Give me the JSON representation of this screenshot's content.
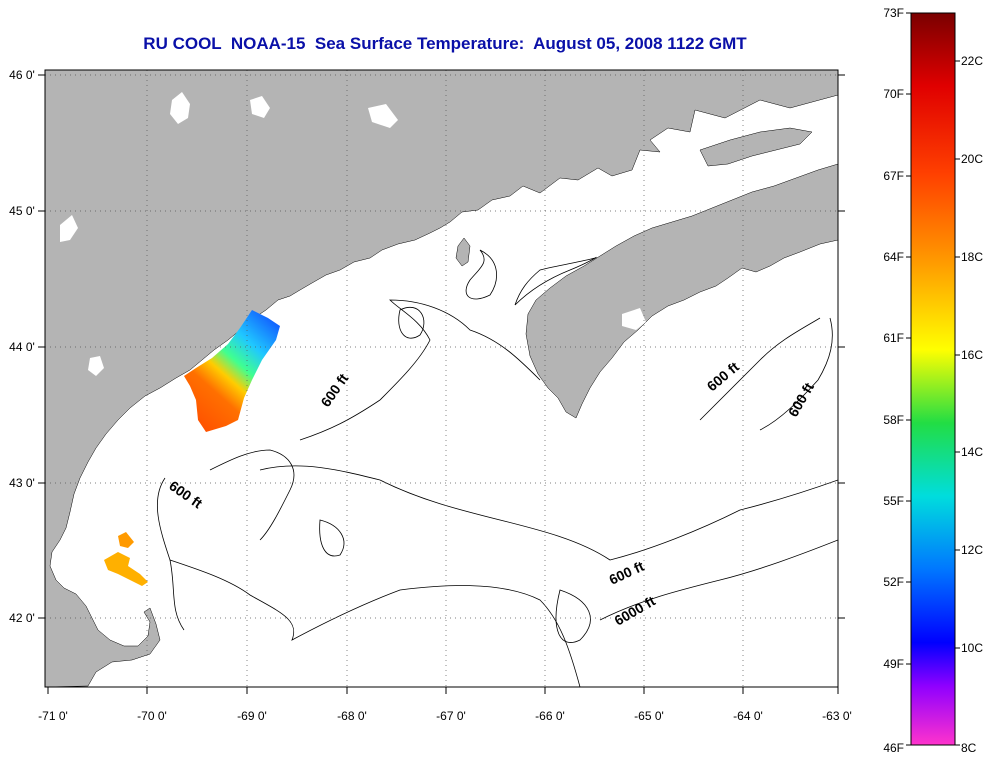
{
  "title": "RU COOL  NOAA-15  Sea Surface Temperature:  August 05, 2008 1122 GMT",
  "map": {
    "lon_range": [
      -71,
      -63
    ],
    "lat_range": [
      41.5,
      46
    ],
    "lat_ticks": [
      "46 0'",
      "45 0'",
      "44 0'",
      "43 0'",
      "42 0'"
    ],
    "lon_ticks": [
      "-71 0'",
      "-70 0'",
      "-69 0'",
      "-68 0'",
      "-67 0'",
      "-66 0'",
      "-65 0'",
      "-64 0'",
      "-63 0'"
    ],
    "land_color": "#b4b4b4",
    "water_color": "#ffffff",
    "grid": "dotted",
    "contour_labels": [
      "600 ft",
      "600 ft",
      "600 ft",
      "600 ft",
      "600 ft",
      "6000 ft"
    ]
  },
  "colorbar": {
    "fahrenheit_labels": [
      "73F",
      "70F",
      "67F",
      "64F",
      "61F",
      "58F",
      "55F",
      "52F",
      "49F",
      "46F"
    ],
    "celsius_labels": [
      "22C",
      "20C",
      "18C",
      "16C",
      "14C",
      "12C",
      "10C",
      "8C"
    ],
    "colors": [
      "#7a0000",
      "#ff0000",
      "#ff8c00",
      "#ffff00",
      "#22dd44",
      "#00dddd",
      "#0066ff",
      "#0000ff",
      "#a000ff",
      "#ff33cc"
    ]
  }
}
